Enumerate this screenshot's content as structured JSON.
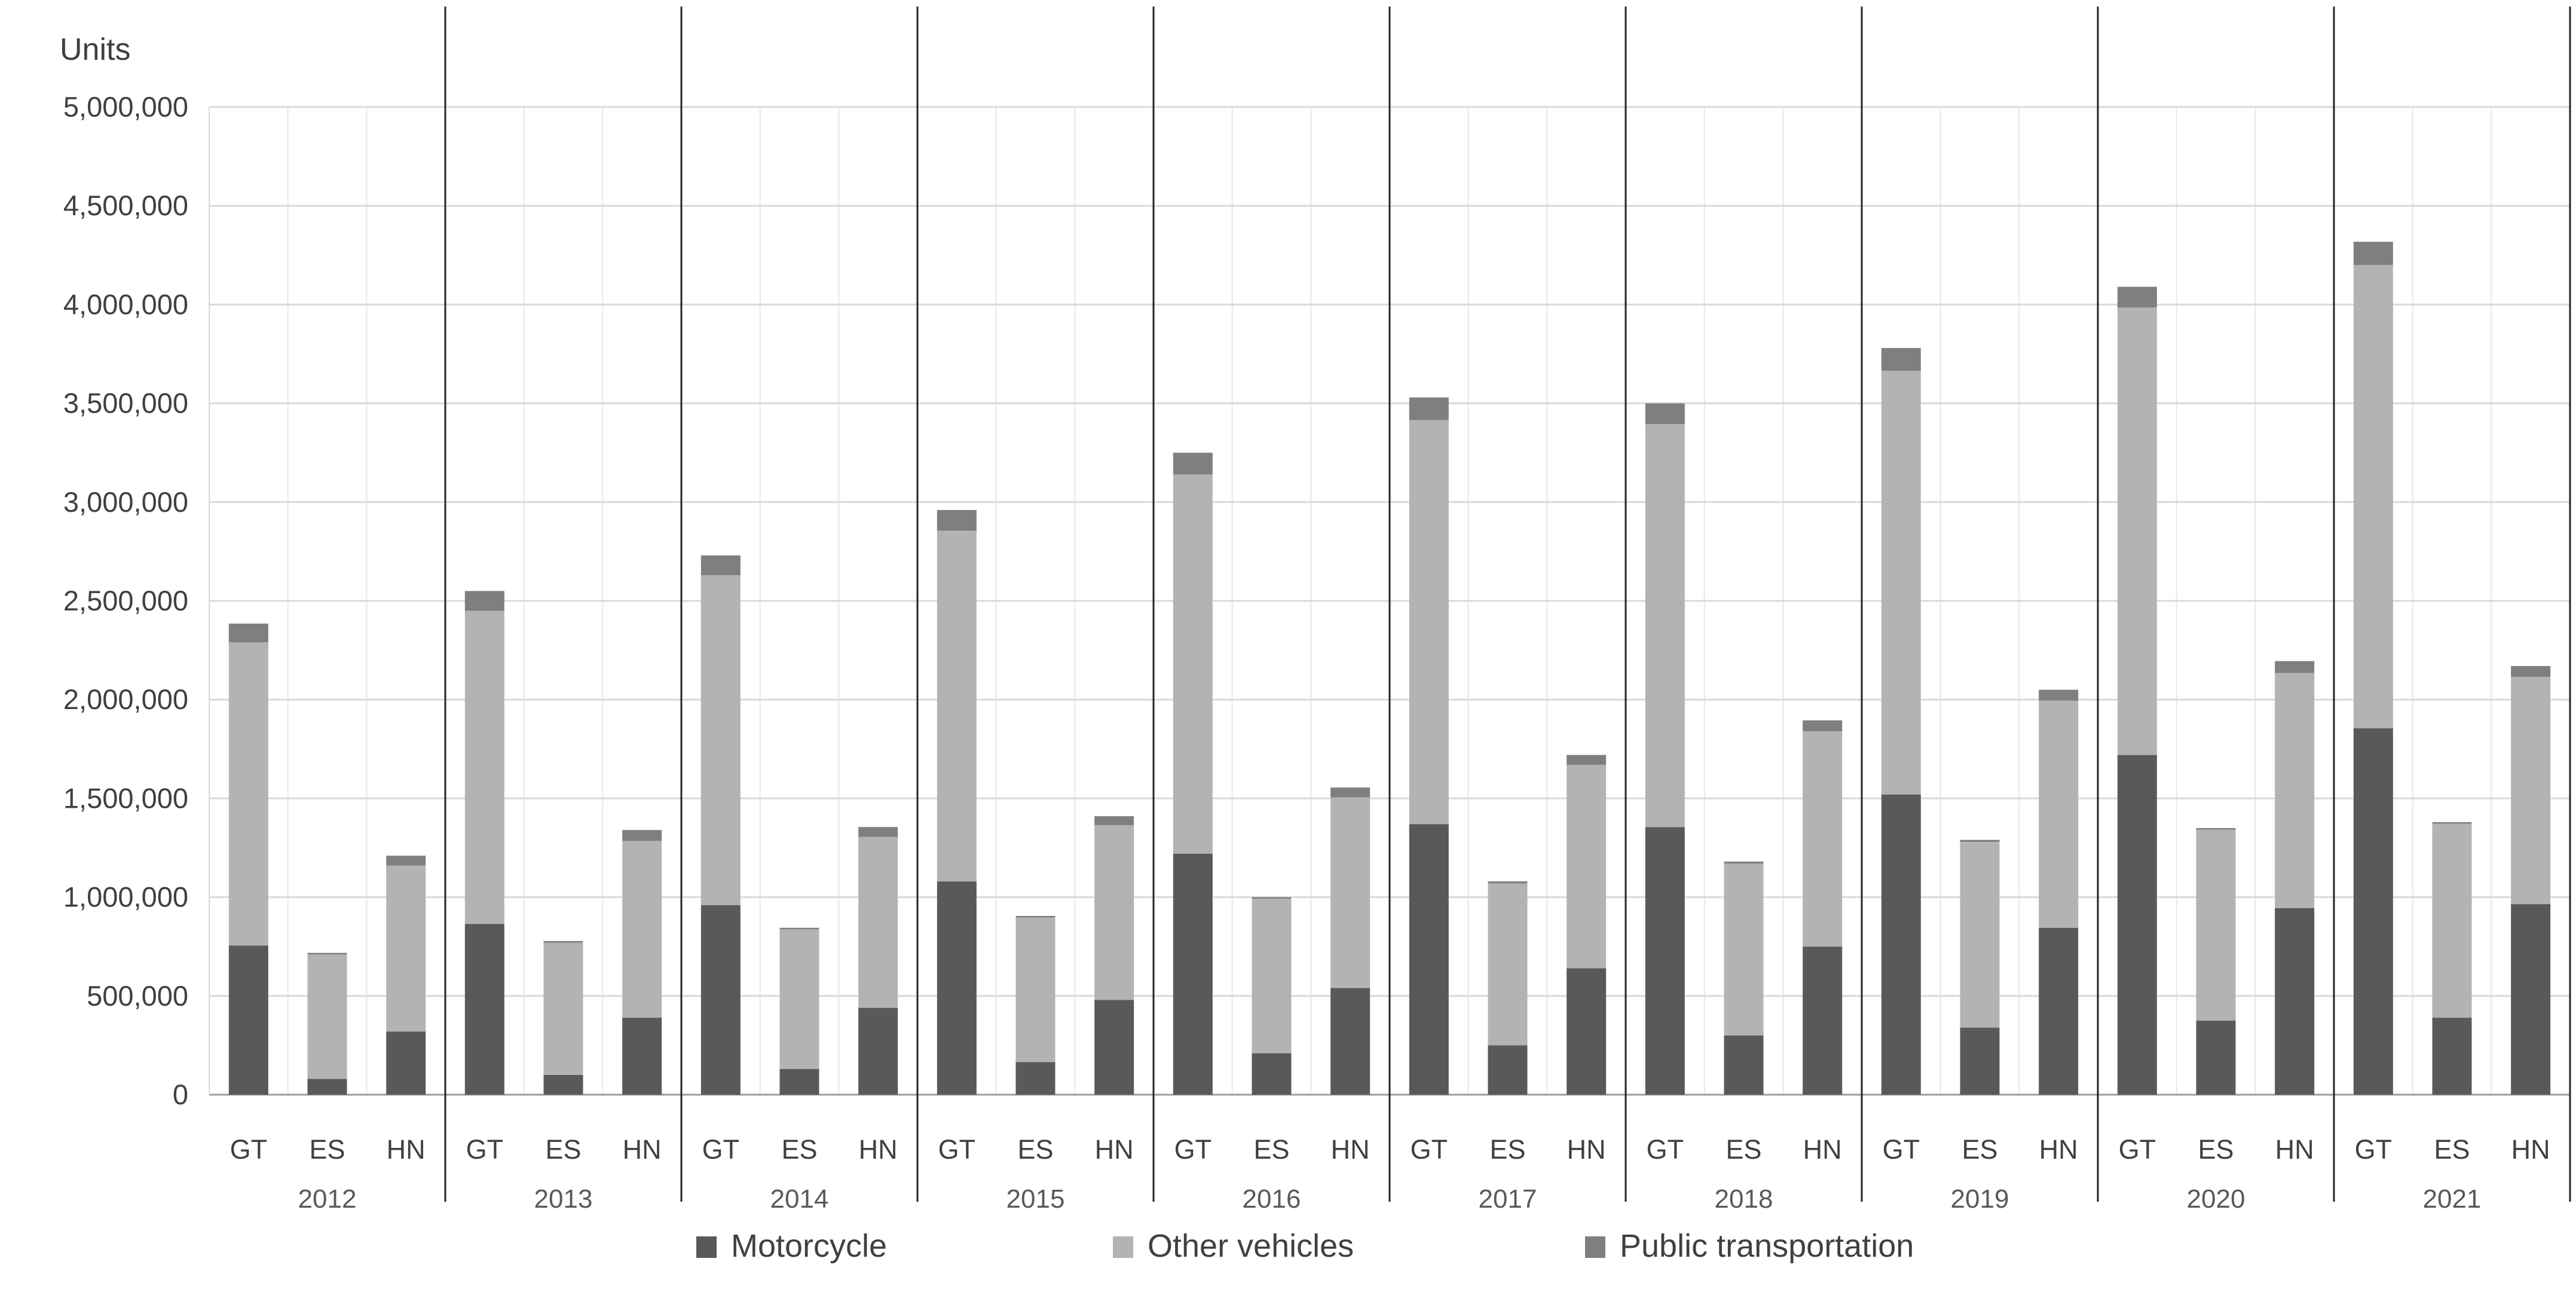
{
  "chart_data": {
    "type": "bar",
    "stacked": true,
    "title": "Units",
    "y_axis": {
      "min": 0,
      "max": 5000000,
      "step": 500000
    },
    "grid": true,
    "legend_position": "bottom",
    "years": [
      "2012",
      "2013",
      "2014",
      "2015",
      "2016",
      "2017",
      "2018",
      "2019",
      "2020",
      "2021"
    ],
    "countries": [
      "GT",
      "ES",
      "HN"
    ],
    "series": [
      {
        "name": "Motorcycle",
        "color": "#595959",
        "values": [
          [
            755000,
            80000,
            320000
          ],
          [
            865000,
            100000,
            390000
          ],
          [
            960000,
            130000,
            440000
          ],
          [
            1080000,
            165000,
            480000
          ],
          [
            1220000,
            210000,
            540000
          ],
          [
            1370000,
            250000,
            640000
          ],
          [
            1355000,
            300000,
            750000
          ],
          [
            1520000,
            340000,
            845000
          ],
          [
            1720000,
            375000,
            945000
          ],
          [
            1855000,
            390000,
            965000
          ]
        ]
      },
      {
        "name": "Other vehicles",
        "color": "#b3b3b3",
        "values": [
          [
            1535000,
            630000,
            840000
          ],
          [
            1585000,
            670000,
            895000
          ],
          [
            1670000,
            707000,
            865000
          ],
          [
            1775000,
            732000,
            885000
          ],
          [
            1920000,
            782000,
            965000
          ],
          [
            2045000,
            820000,
            1030000
          ],
          [
            2040000,
            870000,
            1090000
          ],
          [
            2145000,
            940000,
            1150000
          ],
          [
            2265000,
            967000,
            1190000
          ],
          [
            2345000,
            982000,
            1150000
          ]
        ]
      },
      {
        "name": "Public transportation",
        "color": "#7f7f7f",
        "values": [
          [
            95000,
            8000,
            50000
          ],
          [
            100000,
            8000,
            55000
          ],
          [
            100000,
            8000,
            50000
          ],
          [
            105000,
            8000,
            45000
          ],
          [
            110000,
            8000,
            50000
          ],
          [
            115000,
            10000,
            50000
          ],
          [
            105000,
            10000,
            55000
          ],
          [
            115000,
            10000,
            55000
          ],
          [
            105000,
            8000,
            60000
          ],
          [
            118000,
            8000,
            55000
          ]
        ]
      }
    ]
  }
}
